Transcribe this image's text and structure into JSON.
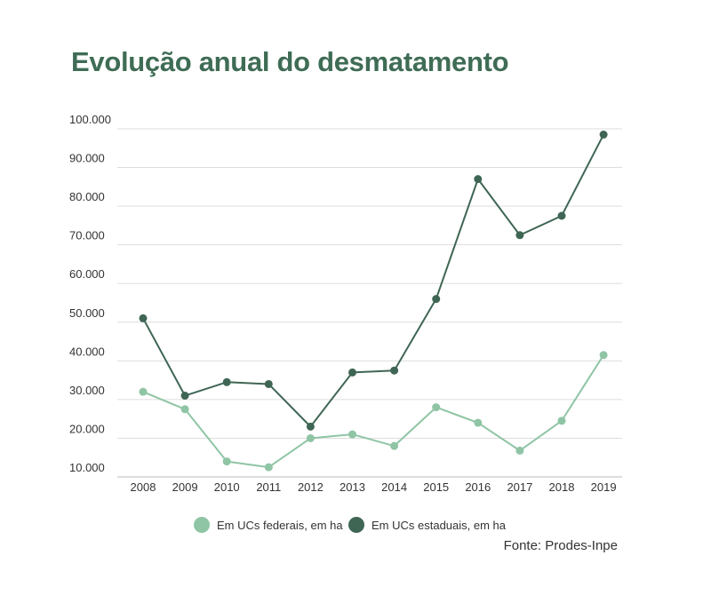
{
  "colors": {
    "title": "#3f6c55",
    "federal": "#8fc5a5",
    "estadual": "#3f6654",
    "grid": "#dddddd",
    "text": "#333333"
  },
  "chart_data": {
    "type": "line",
    "title": "Evolução anual do desmatamento",
    "xlabel": "",
    "ylabel": "",
    "categories": [
      "2008",
      "2009",
      "2010",
      "2011",
      "2012",
      "2013",
      "2014",
      "2015",
      "2016",
      "2017",
      "2018",
      "2019"
    ],
    "ylim": [
      10000,
      100000
    ],
    "yticks": [
      100000,
      90000,
      80000,
      70000,
      60000,
      50000,
      40000,
      30000,
      20000,
      10000
    ],
    "ytick_labels": [
      "100.000",
      "90.000",
      "80.000",
      "70.000",
      "60.000",
      "50.000",
      "40.000",
      "30.000",
      "20.000",
      "10.000"
    ],
    "grid": true,
    "legend_position": "bottom",
    "series": [
      {
        "name": "Em UCs federais, em ha",
        "color": "#8fc5a5",
        "values": [
          32000,
          27500,
          14000,
          12500,
          20000,
          21000,
          18000,
          28000,
          24000,
          16800,
          24500,
          41500
        ]
      },
      {
        "name": "Em UCs estaduais, em ha",
        "color": "#3f6654",
        "values": [
          51000,
          31000,
          34500,
          34000,
          23000,
          37000,
          37500,
          56000,
          87000,
          72500,
          77500,
          98500
        ]
      }
    ],
    "source": "Fonte: Prodes-Inpe"
  }
}
